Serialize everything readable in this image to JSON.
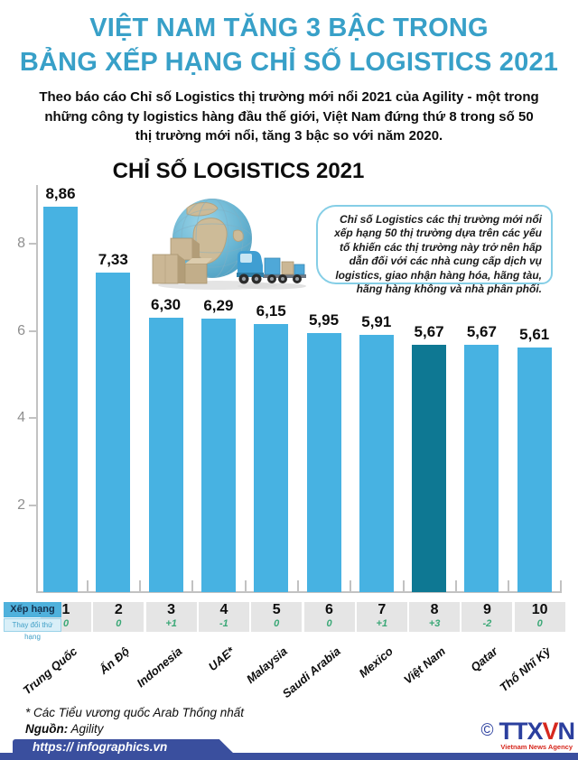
{
  "header": {
    "title_line1": "VIỆT NAM TĂNG 3 BẬC TRONG",
    "title_line2": "BẢNG XẾP HẠNG CHỈ SỐ LOGISTICS 2021",
    "subtitle": "Theo báo cáo Chỉ số Logistics thị trường mới nổi 2021 của Agility - một trong những công ty logistics hàng đầu thế giới, Việt Nam đứng thứ 8 trong số 50 thị trường mới nổi, tăng 3 bậc so với năm 2020.",
    "title_color": "#38A0C8"
  },
  "note_box": {
    "text": "Chỉ số Logistics các thị trường mới nổi xếp hạng 50 thị trường dựa trên các yếu tố khiến các thị trường này trở nên hấp dẫn đối với các nhà cung cấp dịch vụ logistics, giao nhận hàng hóa, hãng tàu, hãng hàng không và nhà phân phối.",
    "border_color": "#85CEE6"
  },
  "chart_data": {
    "type": "bar",
    "title": "CHỈ SỐ LOGISTICS 2021",
    "categories": [
      "Trung Quốc",
      "Ấn Độ",
      "Indonesia",
      "UAE*",
      "Malaysia",
      "Saudi Arabia",
      "Mexico",
      "Việt Nam",
      "Qatar",
      "Thổ Nhĩ Kỳ"
    ],
    "values": [
      8.86,
      7.33,
      6.3,
      6.29,
      6.15,
      5.95,
      5.91,
      5.67,
      5.67,
      5.61
    ],
    "value_labels": [
      "8,86",
      "7,33",
      "6,30",
      "6,29",
      "6,15",
      "5,95",
      "5,91",
      "5,67",
      "5,67",
      "5,61"
    ],
    "ranks": [
      "1",
      "2",
      "3",
      "4",
      "5",
      "6",
      "7",
      "8",
      "9",
      "10"
    ],
    "rank_changes": [
      "0",
      "0",
      "+1",
      "-1",
      "0",
      "0",
      "+1",
      "+3",
      "-2",
      "0"
    ],
    "highlight_index": 7,
    "yticks": [
      2,
      4,
      6,
      8
    ],
    "ylim": [
      0,
      9.3
    ],
    "grid": false,
    "legend": null,
    "xlabel": "",
    "ylabel": "",
    "bar_color": "#47B2E2",
    "highlight_color": "#0E7893"
  },
  "ranking": {
    "rank_label": "Xếp hạng",
    "change_label": "Thay đổi thứ hạng",
    "change_color": "#3BA877"
  },
  "footer": {
    "footnote": "* Các Tiểu vương quốc Arab Thống nhất",
    "source_label": "Nguồn:",
    "source_value": "Agility",
    "url": "https:// infographics.vn"
  },
  "agency_logo": {
    "copyright": "©",
    "letters_blue_1": "TTX",
    "letter_red": "V",
    "letters_blue_2": "N",
    "tagline": "Vietnam News Agency"
  }
}
